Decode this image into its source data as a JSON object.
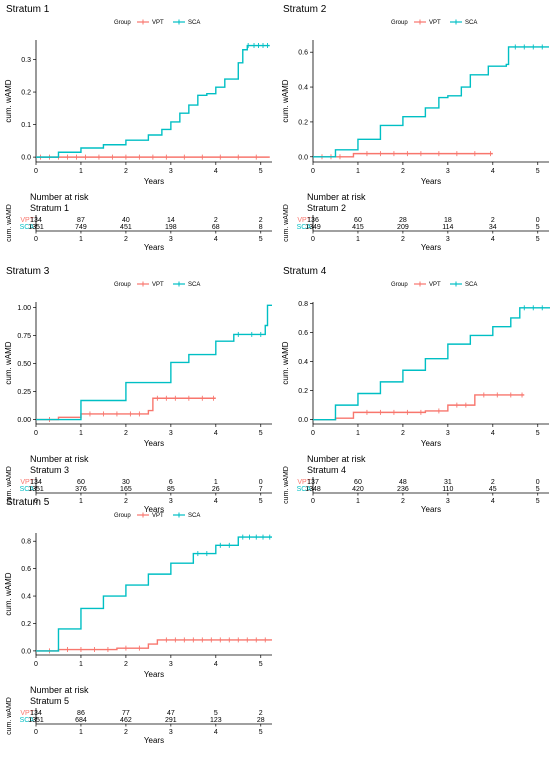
{
  "colors": {
    "VPT": "#F8766D",
    "SCA": "#00BFC4",
    "text": "#000000"
  },
  "legend_title": "Group",
  "risk_title": "Number at risk",
  "chart_data": [
    {
      "type": "line",
      "title": "Stratum 1",
      "xlabel": "Years",
      "ylabel": "cum. wAMD",
      "xlim": [
        0,
        5.25
      ],
      "ylim": [
        -0.015,
        0.36
      ],
      "xticks": [
        0,
        1,
        2,
        3,
        4,
        5
      ],
      "yticks": [
        0.0,
        0.1,
        0.2,
        0.3
      ],
      "ytick_labels": [
        "0.0",
        "0.1",
        "0.2",
        "0.3"
      ],
      "legend": "top",
      "series": [
        {
          "name": "VPT",
          "x": [
            0,
            5.2
          ],
          "y": [
            0,
            0
          ],
          "censor_x": [
            0.1,
            0.3,
            0.5,
            0.7,
            0.9,
            1.1,
            1.4,
            1.7,
            2.0,
            2.3,
            2.6,
            2.9,
            3.3,
            3.7,
            4.1,
            4.5,
            4.9
          ]
        },
        {
          "name": "SCA",
          "x": [
            0,
            0.5,
            1.0,
            1.5,
            2.0,
            2.5,
            2.8,
            3.0,
            3.2,
            3.4,
            3.6,
            3.8,
            4.0,
            4.2,
            4.5,
            4.6,
            4.7,
            5.2
          ],
          "y": [
            0,
            0.015,
            0.028,
            0.038,
            0.052,
            0.068,
            0.085,
            0.108,
            0.135,
            0.16,
            0.19,
            0.195,
            0.215,
            0.24,
            0.29,
            0.33,
            0.343,
            0.343
          ],
          "censor_x": [
            4.72,
            4.85,
            4.95,
            5.05,
            5.15
          ]
        }
      ],
      "risk": {
        "label": "Stratum 1",
        "groups": [
          "VPT",
          "SCA"
        ],
        "rows": [
          [
            134,
            87,
            40,
            14,
            2,
            2
          ],
          [
            1351,
            749,
            451,
            198,
            68,
            8
          ]
        ]
      }
    },
    {
      "type": "line",
      "title": "Stratum 2",
      "xlabel": "Years",
      "ylabel": "cum. wAMD",
      "xlim": [
        0,
        5.25
      ],
      "ylim": [
        -0.03,
        0.67
      ],
      "xticks": [
        0,
        1,
        2,
        3,
        4,
        5
      ],
      "yticks": [
        0.0,
        0.2,
        0.4,
        0.6
      ],
      "ytick_labels": [
        "0.0",
        "0.2",
        "0.4",
        "0.6"
      ],
      "legend": "top",
      "series": [
        {
          "name": "VPT",
          "x": [
            0,
            0.9,
            4.0
          ],
          "y": [
            0,
            0.018,
            0.018
          ],
          "censor_x": [
            0.2,
            0.4,
            0.6,
            1.2,
            1.5,
            1.8,
            2.1,
            2.4,
            2.8,
            3.2,
            3.6,
            3.95
          ]
        },
        {
          "name": "SCA",
          "x": [
            0,
            0.5,
            1.0,
            1.5,
            2.0,
            2.5,
            2.8,
            3.0,
            3.3,
            3.5,
            3.9,
            4.3,
            4.35,
            5.25
          ],
          "y": [
            0,
            0.04,
            0.1,
            0.18,
            0.23,
            0.28,
            0.34,
            0.35,
            0.4,
            0.47,
            0.52,
            0.53,
            0.63,
            0.63
          ],
          "censor_x": [
            4.5,
            4.7,
            4.9,
            5.1
          ]
        }
      ],
      "risk": {
        "label": "Stratum 2",
        "groups": [
          "VPT",
          "SCA"
        ],
        "rows": [
          [
            136,
            60,
            28,
            18,
            2,
            0
          ],
          [
            1349,
            415,
            209,
            114,
            34,
            5
          ]
        ]
      }
    },
    {
      "type": "line",
      "title": "Stratum 3",
      "xlabel": "Years",
      "ylabel": "cum. wAMD",
      "xlim": [
        0,
        5.25
      ],
      "ylim": [
        -0.04,
        1.05
      ],
      "xticks": [
        0,
        1,
        2,
        3,
        4,
        5
      ],
      "yticks": [
        0.0,
        0.25,
        0.5,
        0.75,
        1.0
      ],
      "ytick_labels": [
        "0.00",
        "0.25",
        "0.50",
        "0.75",
        "1.00"
      ],
      "legend": "top",
      "series": [
        {
          "name": "VPT",
          "x": [
            0,
            0.5,
            1.0,
            2.5,
            2.6,
            4.0
          ],
          "y": [
            0,
            0.02,
            0.05,
            0.08,
            0.19,
            0.19
          ],
          "censor_x": [
            0.3,
            1.2,
            1.5,
            1.8,
            2.1,
            2.3,
            2.7,
            2.9,
            3.1,
            3.4,
            3.7,
            3.95
          ]
        },
        {
          "name": "SCA",
          "x": [
            0,
            1.0,
            2.0,
            3.0,
            3.4,
            4.0,
            4.4,
            5.1,
            5.15,
            5.25
          ],
          "y": [
            0,
            0.17,
            0.33,
            0.51,
            0.58,
            0.7,
            0.76,
            0.84,
            1.02,
            1.02
          ],
          "censor_x": [
            4.5,
            4.8,
            5.0
          ]
        }
      ],
      "risk": {
        "label": "Stratum 3",
        "groups": [
          "VPT",
          "SCA"
        ],
        "rows": [
          [
            134,
            60,
            30,
            6,
            1,
            0
          ],
          [
            1351,
            376,
            165,
            85,
            26,
            7
          ]
        ]
      }
    },
    {
      "type": "line",
      "title": "Stratum 4",
      "xlabel": "Years",
      "ylabel": "cum. wAMD",
      "xlim": [
        0,
        5.25
      ],
      "ylim": [
        -0.03,
        0.81
      ],
      "xticks": [
        0,
        1,
        2,
        3,
        4,
        5
      ],
      "yticks": [
        0.0,
        0.2,
        0.4,
        0.6,
        0.8
      ],
      "ytick_labels": [
        "0.0",
        "0.2",
        "0.4",
        "0.6",
        "0.8"
      ],
      "legend": "top",
      "series": [
        {
          "name": "VPT",
          "x": [
            0,
            0.5,
            0.9,
            2.5,
            3.0,
            3.6,
            4.7
          ],
          "y": [
            0,
            0.01,
            0.05,
            0.06,
            0.1,
            0.17,
            0.17
          ],
          "censor_x": [
            1.2,
            1.5,
            1.8,
            2.1,
            2.4,
            2.8,
            3.2,
            3.4,
            3.8,
            4.1,
            4.4,
            4.65
          ]
        },
        {
          "name": "SCA",
          "x": [
            0,
            0.5,
            1.0,
            1.5,
            2.0,
            2.5,
            3.0,
            3.5,
            4.0,
            4.4,
            4.6,
            5.3
          ],
          "y": [
            0,
            0.1,
            0.18,
            0.26,
            0.34,
            0.42,
            0.52,
            0.58,
            0.64,
            0.7,
            0.77,
            0.77
          ],
          "censor_x": [
            4.7,
            4.9,
            5.1
          ]
        }
      ],
      "risk": {
        "label": "Stratum 4",
        "groups": [
          "VPT",
          "SCA"
        ],
        "rows": [
          [
            137,
            60,
            48,
            31,
            2,
            0
          ],
          [
            1348,
            420,
            236,
            110,
            45,
            5
          ]
        ]
      }
    },
    {
      "type": "line",
      "title": "Stratum 5",
      "xlabel": "Years",
      "ylabel": "cum. wAMD",
      "xlim": [
        0,
        5.25
      ],
      "ylim": [
        -0.03,
        0.86
      ],
      "xticks": [
        0,
        1,
        2,
        3,
        4,
        5
      ],
      "yticks": [
        0.0,
        0.2,
        0.4,
        0.6,
        0.8
      ],
      "ytick_labels": [
        "0.0",
        "0.2",
        "0.4",
        "0.6",
        "0.8"
      ],
      "legend": "top",
      "series": [
        {
          "name": "VPT",
          "x": [
            0,
            0.5,
            1.8,
            2.5,
            2.7,
            5.25
          ],
          "y": [
            0,
            0.01,
            0.02,
            0.05,
            0.08,
            0.08
          ],
          "censor_x": [
            0.3,
            0.7,
            1.0,
            1.3,
            1.6,
            2.0,
            2.3,
            2.9,
            3.1,
            3.3,
            3.5,
            3.7,
            3.9,
            4.1,
            4.3,
            4.5,
            4.7,
            4.9,
            5.1
          ]
        },
        {
          "name": "SCA",
          "x": [
            0,
            0.5,
            1.0,
            1.5,
            2.0,
            2.5,
            3.0,
            3.5,
            4.0,
            4.5,
            5.25
          ],
          "y": [
            0,
            0.16,
            0.31,
            0.4,
            0.48,
            0.56,
            0.64,
            0.71,
            0.77,
            0.83,
            0.83
          ],
          "censor_x": [
            3.6,
            3.8,
            4.1,
            4.3,
            4.6,
            4.75,
            4.9,
            5.05,
            5.2
          ]
        }
      ],
      "risk": {
        "label": "Stratum 5",
        "groups": [
          "VPT",
          "SCA"
        ],
        "rows": [
          [
            134,
            86,
            77,
            47,
            5,
            2
          ],
          [
            1351,
            684,
            462,
            291,
            123,
            28
          ]
        ]
      }
    }
  ]
}
